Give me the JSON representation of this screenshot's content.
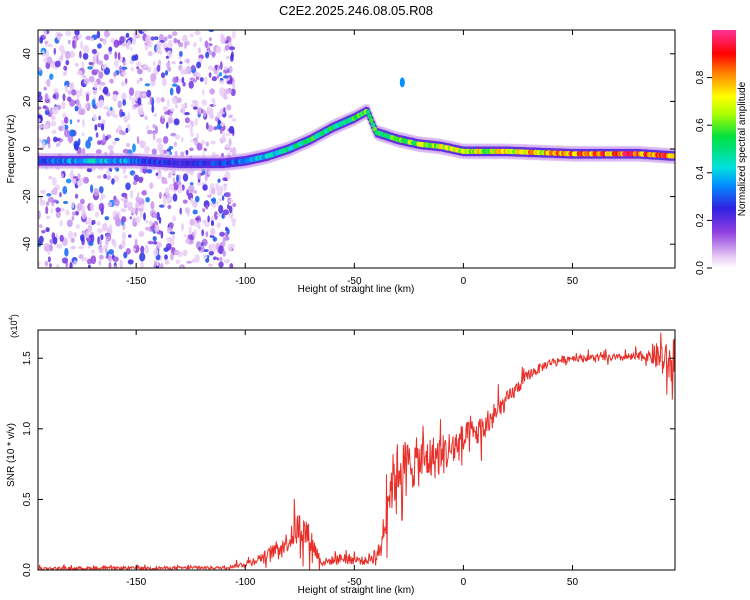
{
  "figure_title": "C2E2.2025.246.08.05.R08",
  "colors": {
    "snr_line": "#e8302a",
    "axis": "#000000",
    "background": "#ffffff"
  },
  "chart_data": [
    {
      "type": "heatmap",
      "name": "spectrogram",
      "xlabel": "Height of straight line (km)",
      "ylabel": "Frequency (Hz)",
      "xlim": [
        -195,
        97
      ],
      "ylim": [
        -50,
        50
      ],
      "x_ticks": [
        -150,
        -100,
        -50,
        0,
        50
      ],
      "x_tick_labels": [
        "-150",
        "-100",
        "-50",
        "0",
        "50"
      ],
      "y_ticks": [
        -40,
        -20,
        0,
        20,
        40
      ],
      "y_tick_labels": [
        "-40",
        "-20",
        "0",
        "20",
        "40"
      ],
      "colorbar": {
        "label": "Normalized spectral amplitude",
        "range": [
          0,
          1
        ],
        "ticks": [
          0.0,
          0.2,
          0.4,
          0.6,
          0.8
        ],
        "tick_labels": [
          "0.0",
          "0.2",
          "0.4",
          "0.6",
          "0.8"
        ],
        "colormap": "rainbow (white-purple-blue-cyan-green-yellow-red-magenta)"
      },
      "ridge": [
        {
          "x": -195,
          "f": -5,
          "amp": 0.3
        },
        {
          "x": -170,
          "f": -5,
          "amp": 0.45
        },
        {
          "x": -150,
          "f": -5,
          "amp": 0.35
        },
        {
          "x": -130,
          "f": -6,
          "amp": 0.25
        },
        {
          "x": -110,
          "f": -6,
          "amp": 0.3
        },
        {
          "x": -100,
          "f": -5,
          "amp": 0.35
        },
        {
          "x": -90,
          "f": -3,
          "amp": 0.45
        },
        {
          "x": -80,
          "f": 0,
          "amp": 0.5
        },
        {
          "x": -70,
          "f": 4,
          "amp": 0.55
        },
        {
          "x": -60,
          "f": 9,
          "amp": 0.55
        },
        {
          "x": -50,
          "f": 13,
          "amp": 0.6
        },
        {
          "x": -44,
          "f": 16,
          "amp": 0.65
        },
        {
          "x": -40,
          "f": 7,
          "amp": 0.55
        },
        {
          "x": -30,
          "f": 4,
          "amp": 0.6
        },
        {
          "x": -20,
          "f": 2,
          "amp": 0.65
        },
        {
          "x": -10,
          "f": 1,
          "amp": 0.7
        },
        {
          "x": 0,
          "f": -1,
          "amp": 0.7
        },
        {
          "x": 20,
          "f": -1,
          "amp": 0.75
        },
        {
          "x": 50,
          "f": -2,
          "amp": 0.85
        },
        {
          "x": 80,
          "f": -2,
          "amp": 0.9
        },
        {
          "x": 97,
          "f": -3,
          "amp": 0.9
        }
      ],
      "isolated_feature": {
        "x": -28,
        "f": 28,
        "amp": 0.35
      },
      "noise_region": {
        "x_from": -195,
        "x_to": -105,
        "amp_max": 0.3
      }
    },
    {
      "type": "line",
      "name": "snr",
      "xlabel": "Height of straight line (km)",
      "ylabel": "SNR (10 * v/v)",
      "y_multiplier_label": "(x10",
      "y_multiplier_exp": "4",
      "y_multiplier_close": ")",
      "xlim": [
        -195,
        97
      ],
      "ylim": [
        0,
        17000
      ],
      "x_ticks": [
        -150,
        -100,
        -50,
        0,
        50
      ],
      "x_tick_labels": [
        "-150",
        "-100",
        "-50",
        "0",
        "50"
      ],
      "y_ticks": [
        0,
        5000,
        10000,
        15000
      ],
      "y_tick_labels": [
        "0.0",
        "0.5",
        "1.0",
        "1.5"
      ],
      "envelope": [
        {
          "x": -195,
          "base": 100,
          "spread": 200
        },
        {
          "x": -110,
          "base": 150,
          "spread": 200
        },
        {
          "x": -100,
          "base": 400,
          "spread": 400
        },
        {
          "x": -90,
          "base": 1000,
          "spread": 800
        },
        {
          "x": -80,
          "base": 2000,
          "spread": 1500
        },
        {
          "x": -75,
          "base": 3000,
          "spread": 2500
        },
        {
          "x": -70,
          "base": 2000,
          "spread": 2000
        },
        {
          "x": -65,
          "base": 500,
          "spread": 500
        },
        {
          "x": -55,
          "base": 800,
          "spread": 800
        },
        {
          "x": -45,
          "base": 600,
          "spread": 600
        },
        {
          "x": -38,
          "base": 1200,
          "spread": 1500
        },
        {
          "x": -35,
          "base": 5000,
          "spread": 4000
        },
        {
          "x": -30,
          "base": 7000,
          "spread": 4000
        },
        {
          "x": -20,
          "base": 7500,
          "spread": 3500
        },
        {
          "x": -10,
          "base": 8000,
          "spread": 3000
        },
        {
          "x": 0,
          "base": 9000,
          "spread": 2500
        },
        {
          "x": 10,
          "base": 10000,
          "spread": 2000
        },
        {
          "x": 20,
          "base": 12000,
          "spread": 1200
        },
        {
          "x": 30,
          "base": 13800,
          "spread": 800
        },
        {
          "x": 40,
          "base": 14700,
          "spread": 600
        },
        {
          "x": 50,
          "base": 15000,
          "spread": 500
        },
        {
          "x": 70,
          "base": 15000,
          "spread": 500
        },
        {
          "x": 85,
          "base": 15100,
          "spread": 700
        },
        {
          "x": 90,
          "base": 15000,
          "spread": 2500
        },
        {
          "x": 97,
          "base": 14000,
          "spread": 3000
        }
      ]
    }
  ]
}
